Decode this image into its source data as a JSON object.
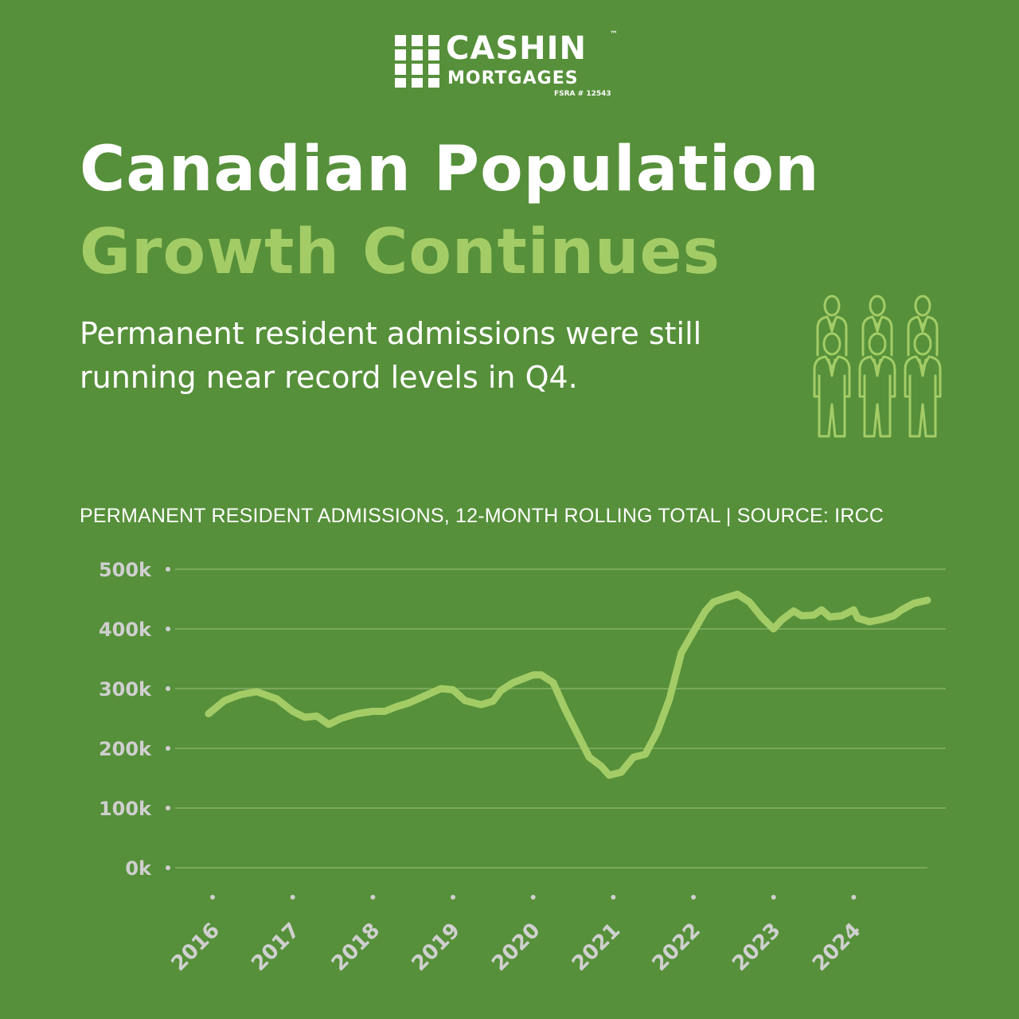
{
  "logo": {
    "name": "CASHIN",
    "trademark": "™",
    "subname": "MORTGAGES",
    "license": "FSRA # 12543"
  },
  "header": {
    "title_line1": "Canadian Population",
    "title_line2": "Growth Continues",
    "description": "Permanent resident admissions were still running near record levels in Q4."
  },
  "icon": "people-group-icon",
  "colors": {
    "background": "#56903a",
    "accent": "#a4cc66",
    "line": "#a4cc66",
    "grid": "#7aa85c",
    "tick": "#cfcfcf"
  },
  "chart_data": {
    "type": "line",
    "title": "PERMANENT RESIDENT ADMISSIONS, 12-MONTH ROLLING TOTAL | SOURCE: IRCC",
    "xlabel": "",
    "ylabel": "",
    "ylim": [
      0,
      500000
    ],
    "xlim": [
      2016,
      2024.92
    ],
    "yticks": [
      {
        "value": 0,
        "label": "0k"
      },
      {
        "value": 100000,
        "label": "100k"
      },
      {
        "value": 200000,
        "label": "200k"
      },
      {
        "value": 300000,
        "label": "300k"
      },
      {
        "value": 400000,
        "label": "400k"
      },
      {
        "value": 500000,
        "label": "500k"
      }
    ],
    "xticks": [
      {
        "value": 2016,
        "label": "2016"
      },
      {
        "value": 2017,
        "label": "2017"
      },
      {
        "value": 2018,
        "label": "2018"
      },
      {
        "value": 2019,
        "label": "2019"
      },
      {
        "value": 2020,
        "label": "2020"
      },
      {
        "value": 2021,
        "label": "2021"
      },
      {
        "value": 2022,
        "label": "2022"
      },
      {
        "value": 2023,
        "label": "2023"
      },
      {
        "value": 2024,
        "label": "2024"
      }
    ],
    "grid": true,
    "series": [
      {
        "points": [
          [
            2015.95,
            258000
          ],
          [
            2016.15,
            280000
          ],
          [
            2016.35,
            290000
          ],
          [
            2016.55,
            295000
          ],
          [
            2016.8,
            283000
          ],
          [
            2017.0,
            262000
          ],
          [
            2017.15,
            252000
          ],
          [
            2017.3,
            254000
          ],
          [
            2017.45,
            240000
          ],
          [
            2017.6,
            250000
          ],
          [
            2017.8,
            258000
          ],
          [
            2018.0,
            262000
          ],
          [
            2018.15,
            262000
          ],
          [
            2018.3,
            270000
          ],
          [
            2018.45,
            276000
          ],
          [
            2018.6,
            285000
          ],
          [
            2018.85,
            300000
          ],
          [
            2019.0,
            298000
          ],
          [
            2019.15,
            280000
          ],
          [
            2019.35,
            273000
          ],
          [
            2019.5,
            279000
          ],
          [
            2019.6,
            297000
          ],
          [
            2019.75,
            310000
          ],
          [
            2020.0,
            323000
          ],
          [
            2020.1,
            323000
          ],
          [
            2020.25,
            310000
          ],
          [
            2020.4,
            265000
          ],
          [
            2020.55,
            225000
          ],
          [
            2020.7,
            185000
          ],
          [
            2020.85,
            170000
          ],
          [
            2020.95,
            155000
          ],
          [
            2021.1,
            160000
          ],
          [
            2021.25,
            185000
          ],
          [
            2021.4,
            190000
          ],
          [
            2021.55,
            228000
          ],
          [
            2021.7,
            282000
          ],
          [
            2021.85,
            360000
          ],
          [
            2022.0,
            395000
          ],
          [
            2022.15,
            430000
          ],
          [
            2022.25,
            445000
          ],
          [
            2022.4,
            452000
          ],
          [
            2022.55,
            458000
          ],
          [
            2022.7,
            445000
          ],
          [
            2022.85,
            420000
          ],
          [
            2023.0,
            400000
          ],
          [
            2023.1,
            415000
          ],
          [
            2023.25,
            430000
          ],
          [
            2023.35,
            422000
          ],
          [
            2023.5,
            423000
          ],
          [
            2023.6,
            432000
          ],
          [
            2023.7,
            420000
          ],
          [
            2023.85,
            422000
          ],
          [
            2024.0,
            432000
          ],
          [
            2024.05,
            418000
          ],
          [
            2024.2,
            412000
          ],
          [
            2024.35,
            416000
          ],
          [
            2024.5,
            422000
          ],
          [
            2024.6,
            432000
          ],
          [
            2024.75,
            443000
          ],
          [
            2024.92,
            448000
          ]
        ]
      }
    ]
  }
}
